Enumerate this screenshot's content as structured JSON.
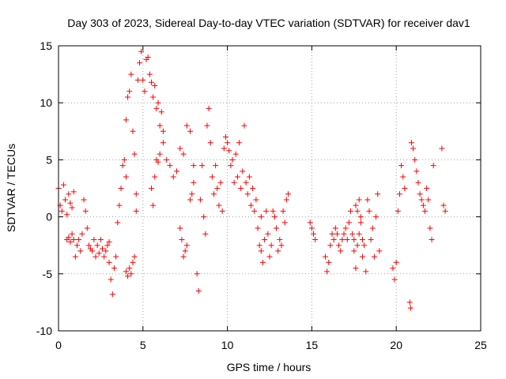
{
  "chart_data": {
    "type": "scatter",
    "title": "Day 303 of 2023, Sidereal Day-to-day VTEC variation (SDTVAR) for receiver dav1",
    "xlabel": "GPS time / hours",
    "ylabel": "SDTVAR / TECUs",
    "xlim": [
      0,
      25
    ],
    "ylim": [
      -10,
      15
    ],
    "x_ticks": [
      0,
      5,
      10,
      15,
      20,
      25
    ],
    "y_ticks": [
      -10,
      -5,
      0,
      5,
      10,
      15
    ],
    "marker": "plus",
    "color": "#ff0000",
    "grid": true,
    "series": [
      {
        "name": "SDTVAR dav1",
        "segments": [
          {
            "x": [
              0.0,
              0.1,
              0.2,
              0.3,
              0.4,
              0.5,
              0.6,
              0.7,
              0.8,
              0.9
            ],
            "y": [
              2.5,
              1.0,
              0.5,
              2.8,
              1.5,
              0.2,
              2.0,
              1.2,
              0.8,
              2.2
            ]
          },
          {
            "x": [
              0.5,
              0.6,
              0.7,
              0.8,
              0.9,
              1.0,
              1.1,
              1.2,
              1.3,
              1.4,
              1.5,
              1.6,
              1.7,
              1.8,
              1.9,
              2.0,
              2.1,
              2.2,
              2.3,
              2.4,
              2.5,
              2.6,
              2.7,
              2.8,
              2.9,
              3.0
            ],
            "y": [
              -2.0,
              -1.8,
              -2.2,
              -1.5,
              -2.0,
              -3.5,
              -2.5,
              -2.0,
              -3.0,
              -1.5,
              1.5,
              0.5,
              -1.0,
              -2.5,
              -2.8,
              -3.0,
              -2.0,
              -3.5,
              -2.5,
              -3.2,
              -2.0,
              -2.8,
              -3.5,
              -3.0,
              -2.5,
              -2.2
            ]
          },
          {
            "x": [
              3.0,
              3.1,
              3.2,
              3.3,
              3.4,
              3.5,
              3.6,
              3.7,
              3.8,
              3.9,
              4.0
            ],
            "y": [
              -4.0,
              -5.5,
              -6.8,
              -4.5,
              -3.5,
              -0.5,
              1.0,
              2.5,
              4.5,
              5.0,
              3.5
            ]
          },
          {
            "x": [
              4.0,
              4.1,
              4.2,
              4.3,
              4.4,
              4.5,
              4.6,
              4.7,
              4.8,
              4.9,
              5.0,
              5.1,
              5.2,
              5.3,
              5.4,
              5.5,
              5.6,
              5.7,
              5.8,
              5.9,
              6.0,
              6.1,
              6.2
            ],
            "y": [
              -4.8,
              -5.2,
              -4.5,
              -5.0,
              -4.0,
              -3.5,
              2.0,
              12.0,
              13.5,
              14.5,
              12.0,
              11.0,
              13.8,
              14.0,
              12.5,
              11.8,
              10.5,
              11.5,
              9.5,
              10.0,
              8.0,
              9.2,
              7.5
            ]
          },
          {
            "x": [
              4.0,
              4.1,
              4.2,
              4.3,
              4.4,
              4.5,
              4.6
            ],
            "y": [
              8.5,
              10.5,
              11.0,
              12.5,
              7.5,
              5.5,
              0.5
            ]
          },
          {
            "x": [
              5.5,
              5.6,
              5.7,
              5.8,
              5.9,
              6.0,
              6.2,
              6.4,
              6.6,
              6.8,
              7.0,
              7.2,
              7.4,
              7.6,
              7.8,
              8.0
            ],
            "y": [
              2.5,
              1.0,
              3.5,
              5.0,
              4.8,
              5.5,
              6.5,
              5.0,
              4.5,
              3.5,
              4.0,
              6.0,
              5.5,
              8.0,
              7.5,
              4.5
            ]
          },
          {
            "x": [
              7.2,
              7.3,
              7.4,
              7.5,
              7.6,
              7.8,
              7.9,
              8.0
            ],
            "y": [
              -1.0,
              -2.0,
              -3.5,
              -3.0,
              -2.5,
              1.5,
              2.0,
              3.0
            ]
          },
          {
            "x": [
              8.2,
              8.3,
              8.4,
              8.5,
              8.6,
              8.7,
              8.8,
              8.9,
              9.0,
              9.1,
              9.2,
              9.3,
              9.4,
              9.5,
              9.6
            ],
            "y": [
              -5.0,
              -6.5,
              1.5,
              4.5,
              0.0,
              -1.5,
              8.0,
              9.5,
              6.5,
              3.5,
              2.0,
              4.5,
              2.5,
              1.0,
              3.0
            ]
          },
          {
            "x": [
              9.7,
              9.8,
              9.9,
              10.0,
              10.1,
              10.2,
              10.3
            ],
            "y": [
              0.5,
              6.0,
              7.0,
              6.5,
              5.8,
              4.5,
              5.0
            ]
          },
          {
            "x": [
              10.4,
              10.5,
              10.6,
              10.7,
              10.8,
              10.9,
              11.0,
              11.1,
              11.2,
              11.3,
              11.4,
              11.5,
              11.6,
              11.7,
              11.8,
              11.9,
              12.0
            ],
            "y": [
              3.0,
              5.5,
              3.5,
              6.5,
              2.5,
              4.0,
              8.0,
              3.0,
              2.0,
              3.5,
              1.0,
              2.5,
              0.5,
              1.5,
              -1.0,
              -2.5,
              0.0
            ]
          },
          {
            "x": [
              12.0,
              12.1,
              12.2,
              12.3,
              12.4,
              12.5,
              12.6,
              12.7,
              12.8,
              12.9,
              13.0,
              13.1,
              13.2,
              13.3,
              13.4,
              13.5,
              13.6
            ],
            "y": [
              -3.0,
              -4.0,
              -2.0,
              0.5,
              -1.5,
              -3.5,
              -2.5,
              0.5,
              0.0,
              -1.0,
              -3.0,
              -2.0,
              -2.5,
              0.5,
              -0.5,
              1.5,
              2.0
            ]
          },
          {
            "x": [
              14.9,
              15.0,
              15.1,
              15.2
            ],
            "y": [
              -0.5,
              -1.0,
              -1.5,
              -2.0
            ]
          },
          {
            "x": [
              15.8,
              15.9,
              16.0,
              16.1,
              16.2,
              16.3,
              16.4,
              16.5,
              16.6,
              16.7,
              16.8,
              16.9,
              17.0,
              17.1,
              17.2,
              17.3,
              17.4,
              17.5,
              17.6,
              17.7,
              17.8,
              17.9,
              18.0
            ],
            "y": [
              -3.5,
              -4.8,
              -4.0,
              -2.5,
              -1.5,
              -2.0,
              -1.0,
              -1.5,
              -2.5,
              -3.0,
              -2.0,
              -1.5,
              -1.0,
              -2.0,
              -0.5,
              0.5,
              -1.5,
              -2.0,
              1.0,
              0.5,
              1.5,
              -0.5,
              -2.0
            ]
          },
          {
            "x": [
              17.5,
              17.6,
              17.7,
              17.8,
              17.9,
              18.0,
              18.1,
              18.2,
              18.3,
              18.4,
              18.5,
              18.6,
              18.7,
              18.8,
              18.9,
              19.0
            ],
            "y": [
              -3.0,
              -4.5,
              -2.5,
              -1.5,
              0.0,
              -3.5,
              -2.5,
              -4.8,
              1.5,
              0.5,
              -2.0,
              -1.0,
              -3.5,
              0.0,
              2.0,
              -3.0
            ]
          },
          {
            "x": [
              19.8,
              19.9,
              20.0,
              20.1,
              20.2,
              20.3,
              20.4,
              20.5
            ],
            "y": [
              -4.5,
              -5.5,
              -4.0,
              0.5,
              2.0,
              4.5,
              3.5,
              2.5
            ]
          },
          {
            "x": [
              20.8,
              20.85,
              20.9,
              21.0,
              21.1,
              21.2,
              21.3,
              21.4,
              21.5,
              21.6,
              21.7,
              21.8,
              21.9,
              22.0,
              22.1,
              22.2
            ],
            "y": [
              -7.5,
              -8.0,
              6.5,
              6.0,
              5.0,
              4.0,
              3.0,
              2.0,
              1.5,
              1.0,
              0.5,
              2.5,
              1.5,
              -1.0,
              -2.0,
              4.5
            ]
          },
          {
            "x": [
              22.7,
              22.8,
              22.9
            ],
            "y": [
              6.0,
              1.0,
              0.5
            ]
          }
        ]
      }
    ]
  }
}
